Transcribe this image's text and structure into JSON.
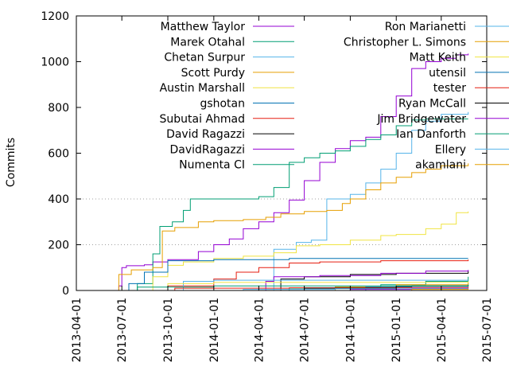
{
  "chart_data": {
    "type": "line",
    "title": "",
    "xlabel": "",
    "ylabel": "Commits",
    "xlim": [
      "2013-04-01",
      "2015-07-01"
    ],
    "ylim": [
      0,
      1200
    ],
    "y_ticks": [
      0,
      200,
      400,
      600,
      800,
      1000,
      1200
    ],
    "x_ticks": [
      "2013-04-01",
      "2013-07-01",
      "2013-10-01",
      "2014-01-01",
      "2014-04-01",
      "2014-07-01",
      "2014-10-01",
      "2015-01-01",
      "2015-04-01",
      "2015-07-01"
    ],
    "grid": "horizontal dotted at 200 and 400",
    "legend_placement": "inside top, two columns",
    "series": [
      {
        "name": "Matthew Taylor",
        "color": "#9400d3",
        "points": [
          [
            "2013-04-01",
            0
          ],
          [
            "2013-06-20",
            0
          ],
          [
            "2013-06-25",
            20
          ],
          [
            "2013-07-01",
            100
          ],
          [
            "2013-07-10",
            108
          ],
          [
            "2013-08-15",
            112
          ],
          [
            "2013-09-01",
            125
          ],
          [
            "2013-10-01",
            135
          ],
          [
            "2013-12-01",
            170
          ],
          [
            "2014-01-01",
            200
          ],
          [
            "2014-02-01",
            225
          ],
          [
            "2014-03-01",
            270
          ],
          [
            "2014-04-01",
            300
          ],
          [
            "2014-05-01",
            340
          ],
          [
            "2014-06-01",
            395
          ],
          [
            "2014-07-01",
            480
          ],
          [
            "2014-08-01",
            560
          ],
          [
            "2014-09-01",
            620
          ],
          [
            "2014-10-01",
            655
          ],
          [
            "2014-11-01",
            670
          ],
          [
            "2014-12-01",
            760
          ],
          [
            "2015-01-01",
            850
          ],
          [
            "2015-02-01",
            970
          ],
          [
            "2015-03-01",
            1000
          ],
          [
            "2015-04-01",
            1015
          ],
          [
            "2015-05-01",
            1030
          ],
          [
            "2015-05-25",
            1035
          ]
        ]
      },
      {
        "name": "Marek Otahal",
        "color": "#009e73",
        "points": [
          [
            "2013-04-01",
            0
          ],
          [
            "2013-07-05",
            0
          ],
          [
            "2013-08-01",
            30
          ],
          [
            "2013-09-01",
            160
          ],
          [
            "2013-09-15",
            280
          ],
          [
            "2013-10-10",
            300
          ],
          [
            "2013-11-01",
            350
          ],
          [
            "2013-11-15",
            400
          ],
          [
            "2014-01-01",
            400
          ],
          [
            "2014-03-01",
            400
          ],
          [
            "2014-04-01",
            410
          ],
          [
            "2014-05-01",
            450
          ],
          [
            "2014-06-01",
            560
          ],
          [
            "2014-07-01",
            580
          ],
          [
            "2014-08-01",
            600
          ],
          [
            "2014-09-01",
            610
          ],
          [
            "2014-10-01",
            630
          ],
          [
            "2014-11-01",
            660
          ],
          [
            "2014-12-01",
            680
          ],
          [
            "2015-01-01",
            720
          ],
          [
            "2015-02-01",
            745
          ],
          [
            "2015-03-01",
            750
          ],
          [
            "2015-04-01",
            750
          ],
          [
            "2015-05-25",
            750
          ]
        ]
      },
      {
        "name": "Chetan Surpur",
        "color": "#56b4e9",
        "points": [
          [
            "2013-04-01",
            0
          ],
          [
            "2014-04-01",
            0
          ],
          [
            "2014-05-01",
            180
          ],
          [
            "2014-06-15",
            210
          ],
          [
            "2014-07-15",
            220
          ],
          [
            "2014-08-15",
            400
          ],
          [
            "2014-10-01",
            420
          ],
          [
            "2014-11-01",
            470
          ],
          [
            "2014-12-01",
            530
          ],
          [
            "2015-01-01",
            600
          ],
          [
            "2015-02-01",
            700
          ],
          [
            "2015-03-01",
            740
          ],
          [
            "2015-04-01",
            770
          ],
          [
            "2015-05-25",
            780
          ]
        ]
      },
      {
        "name": "Scott Purdy",
        "color": "#e69f00",
        "points": [
          [
            "2013-04-01",
            0
          ],
          [
            "2013-06-15",
            0
          ],
          [
            "2013-06-25",
            70
          ],
          [
            "2013-07-20",
            90
          ],
          [
            "2013-09-01",
            100
          ],
          [
            "2013-09-20",
            260
          ],
          [
            "2013-10-15",
            275
          ],
          [
            "2013-12-01",
            300
          ],
          [
            "2014-01-01",
            305
          ],
          [
            "2014-03-01",
            310
          ],
          [
            "2014-04-15",
            320
          ],
          [
            "2014-05-15",
            335
          ],
          [
            "2014-07-01",
            345
          ],
          [
            "2014-08-15",
            350
          ],
          [
            "2014-09-15",
            380
          ],
          [
            "2014-10-01",
            400
          ],
          [
            "2014-11-01",
            440
          ],
          [
            "2014-12-01",
            470
          ],
          [
            "2015-01-01",
            495
          ],
          [
            "2015-02-01",
            515
          ],
          [
            "2015-03-01",
            530
          ],
          [
            "2015-04-01",
            545
          ],
          [
            "2015-05-25",
            555
          ]
        ]
      },
      {
        "name": "Austin Marshall",
        "color": "#f0e442",
        "points": [
          [
            "2013-04-01",
            0
          ],
          [
            "2013-08-01",
            0
          ],
          [
            "2013-09-01",
            60
          ],
          [
            "2013-10-01",
            110
          ],
          [
            "2013-11-01",
            125
          ],
          [
            "2014-01-01",
            140
          ],
          [
            "2014-03-01",
            150
          ],
          [
            "2014-05-01",
            165
          ],
          [
            "2014-06-15",
            195
          ],
          [
            "2014-08-01",
            200
          ],
          [
            "2014-10-01",
            220
          ],
          [
            "2014-12-01",
            240
          ],
          [
            "2015-01-01",
            245
          ],
          [
            "2015-03-01",
            270
          ],
          [
            "2015-04-01",
            290
          ],
          [
            "2015-05-01",
            340
          ],
          [
            "2015-05-25",
            345
          ]
        ]
      },
      {
        "name": "gshotan",
        "color": "#0072b2",
        "points": [
          [
            "2013-04-01",
            0
          ],
          [
            "2013-07-01",
            0
          ],
          [
            "2013-07-15",
            30
          ],
          [
            "2013-08-15",
            80
          ],
          [
            "2013-10-01",
            130
          ],
          [
            "2014-01-01",
            135
          ],
          [
            "2014-06-01",
            140
          ],
          [
            "2015-01-01",
            140
          ],
          [
            "2015-05-25",
            140
          ]
        ]
      },
      {
        "name": "Subutai Ahmad",
        "color": "#e51e10",
        "points": [
          [
            "2013-04-01",
            0
          ],
          [
            "2013-09-01",
            0
          ],
          [
            "2013-10-01",
            20
          ],
          [
            "2014-01-01",
            50
          ],
          [
            "2014-02-15",
            80
          ],
          [
            "2014-04-01",
            100
          ],
          [
            "2014-06-01",
            120
          ],
          [
            "2014-08-01",
            125
          ],
          [
            "2014-12-01",
            130
          ],
          [
            "2015-05-25",
            135
          ]
        ]
      },
      {
        "name": "David Ragazzi",
        "color": "#000000",
        "points": [
          [
            "2013-04-01",
            0
          ],
          [
            "2014-04-15",
            0
          ],
          [
            "2014-05-15",
            50
          ],
          [
            "2014-07-01",
            60
          ],
          [
            "2014-10-01",
            70
          ],
          [
            "2015-01-01",
            75
          ],
          [
            "2015-05-25",
            85
          ]
        ]
      },
      {
        "name": "DavidRagazzi",
        "color": "#9400d3",
        "points": [
          [
            "2013-04-01",
            0
          ],
          [
            "2014-04-01",
            0
          ],
          [
            "2014-04-15",
            40
          ],
          [
            "2014-05-01",
            60
          ],
          [
            "2014-08-01",
            65
          ],
          [
            "2014-12-01",
            75
          ],
          [
            "2015-03-01",
            85
          ],
          [
            "2015-05-25",
            90
          ]
        ]
      },
      {
        "name": "Numenta CI",
        "color": "#009e73",
        "points": [
          [
            "2013-04-01",
            0
          ],
          [
            "2014-03-01",
            0
          ],
          [
            "2014-06-01",
            10
          ],
          [
            "2014-09-01",
            15
          ],
          [
            "2014-12-01",
            25
          ],
          [
            "2015-03-01",
            40
          ],
          [
            "2015-05-25",
            60
          ]
        ]
      },
      {
        "name": "Ron Marianetti",
        "color": "#56b4e9",
        "points": [
          [
            "2013-04-01",
            0
          ],
          [
            "2013-10-01",
            0
          ],
          [
            "2013-11-01",
            40
          ],
          [
            "2014-01-01",
            45
          ],
          [
            "2014-04-01",
            45
          ],
          [
            "2015-05-25",
            45
          ]
        ]
      },
      {
        "name": "Christopher L. Simons",
        "color": "#e69f00",
        "points": [
          [
            "2013-04-01",
            0
          ],
          [
            "2014-08-01",
            0
          ],
          [
            "2014-09-01",
            15
          ],
          [
            "2015-01-01",
            25
          ],
          [
            "2015-05-25",
            35
          ]
        ]
      },
      {
        "name": "Matt Keith",
        "color": "#f0e442",
        "points": [
          [
            "2013-04-01",
            0
          ],
          [
            "2013-09-01",
            0
          ],
          [
            "2013-10-01",
            30
          ],
          [
            "2014-01-01",
            35
          ],
          [
            "2015-05-25",
            40
          ]
        ]
      },
      {
        "name": "utensil",
        "color": "#0072b2",
        "points": [
          [
            "2013-04-01",
            0
          ],
          [
            "2014-10-01",
            0
          ],
          [
            "2014-11-01",
            15
          ],
          [
            "2015-02-01",
            20
          ],
          [
            "2015-05-25",
            25
          ]
        ]
      },
      {
        "name": "tester",
        "color": "#e51e10",
        "points": [
          [
            "2013-04-01",
            0
          ],
          [
            "2013-10-01",
            0
          ],
          [
            "2013-10-15",
            10
          ],
          [
            "2014-06-01",
            12
          ],
          [
            "2015-05-25",
            15
          ]
        ]
      },
      {
        "name": "Ryan McCall",
        "color": "#000000",
        "points": [
          [
            "2013-04-01",
            0
          ],
          [
            "2014-06-01",
            0
          ],
          [
            "2014-07-01",
            10
          ],
          [
            "2015-01-01",
            18
          ],
          [
            "2015-05-25",
            20
          ]
        ]
      },
      {
        "name": "Jim Bridgewater",
        "color": "#9400d3",
        "points": [
          [
            "2013-04-01",
            0
          ],
          [
            "2014-09-01",
            0
          ],
          [
            "2014-10-01",
            5
          ],
          [
            "2015-02-01",
            10
          ],
          [
            "2015-05-25",
            12
          ]
        ]
      },
      {
        "name": "Ian Danforth",
        "color": "#009e73",
        "points": [
          [
            "2013-04-01",
            0
          ],
          [
            "2013-07-01",
            0
          ],
          [
            "2013-08-01",
            15
          ],
          [
            "2014-01-01",
            20
          ],
          [
            "2015-05-25",
            25
          ]
        ]
      },
      {
        "name": "Ellery",
        "color": "#56b4e9",
        "points": [
          [
            "2013-04-01",
            0
          ],
          [
            "2014-02-01",
            0
          ],
          [
            "2014-03-01",
            5
          ],
          [
            "2014-09-01",
            8
          ],
          [
            "2015-05-25",
            10
          ]
        ]
      },
      {
        "name": "akamlani",
        "color": "#e69f00",
        "points": [
          [
            "2013-04-01",
            0
          ],
          [
            "2015-01-01",
            0
          ],
          [
            "2015-02-01",
            5
          ],
          [
            "2015-05-25",
            8
          ]
        ]
      }
    ]
  }
}
